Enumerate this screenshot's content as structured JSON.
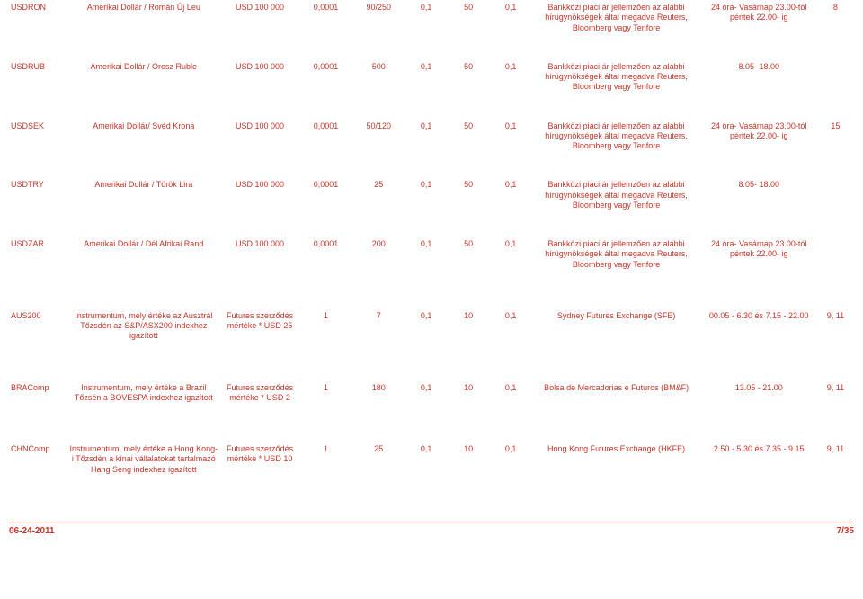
{
  "columns": {
    "widths": [
      "55",
      "145",
      "75",
      "50",
      "50",
      "40",
      "40",
      "40",
      "160",
      "110",
      "35"
    ]
  },
  "rows": [
    {
      "c": [
        "USDRON",
        "Amerikai Dollár / Román Új Leu",
        "USD 100 000",
        "0,0001",
        "90/250",
        "0,1",
        "50",
        "0,1",
        "Bankközi piaci ár jellemzően az alábbi hírügynökségek által megadva Reuters, Bloomberg vagy Tenfore",
        "24 óra- Vasárnap 23.00-tól péntek 22.00- ig",
        "8"
      ]
    },
    {
      "c": [
        "USDRUB",
        "Amerikai Dollár / Orosz Ruble",
        "USD 100 000",
        "0,0001",
        "500",
        "0,1",
        "50",
        "0,1",
        "Bankközi piaci ár jellemzően az alábbi hírügynökségek által megadva Reuters, Bloomberg vagy Tenfore",
        "8.05- 18.00",
        ""
      ]
    },
    {
      "c": [
        "USDSEK",
        "Amerikai Dollár/ Svéd Krona",
        "USD 100 000",
        "0,0001",
        "50/120",
        "0,1",
        "50",
        "0,1",
        "Bankközi piaci ár jellemzően az alábbi hírügynökségek által megadva Reuters, Bloomberg vagy Tenfore",
        "24 óra- Vasárnap 23.00-tól péntek 22.00- ig",
        "15"
      ]
    },
    {
      "c": [
        "USDTRY",
        "Amerikai Dollár / Török Lira",
        "USD 100 000",
        "0,0001",
        "25",
        "0,1",
        "50",
        "0,1",
        "Bankközi piaci ár jellemzően az alábbi hírügynökségek által megadva Reuters, Bloomberg vagy Tenfore",
        "8.05- 18.00",
        ""
      ]
    },
    {
      "c": [
        "USDZAR",
        "Amerikai Dollár / Dél Afrikai Rand",
        "USD 100 000",
        "0,0001",
        "200",
        "0,1",
        "50",
        "0,1",
        "Bankközi piaci ár jellemzően az alábbi hírügynökségek által megadva Reuters, Bloomberg vagy Tenfore",
        "24 óra- Vasárnap 23.00-tól péntek 22.00- ig",
        ""
      ]
    },
    {
      "c": [
        "AUS200",
        "Instrumentum, mely értéke az Ausztrál Tőzsdén az S&P/ASX200 indexhez igazított",
        "Futures szerződés mértéke * USD 25",
        "1",
        "7",
        "0,1",
        "10",
        "0,1",
        "Sydney Futures Exchange (SFE)",
        "00.05 - 6.30 és 7.15 - 22.00",
        "9, 11"
      ]
    },
    {
      "c": [
        "BRAComp",
        "Instrumentum, mely értéke a Brazil Tőzsén a BOVESPA indexhez igazított",
        "Futures szerződés mértéke * USD 2",
        "1",
        "180",
        "0,1",
        "10",
        "0,1",
        "Bolsa de Mercadorias e Futuros (BM&F)",
        "13.05 - 21.00",
        "9, 11"
      ]
    },
    {
      "c": [
        "CHNComp",
        "Instrumentum, mely értéke a Hong Kong-i Tőzsdén a kínai vállalatokat tartalmazó Hang Seng indexhez igazított",
        "Futures szerződés mértéke * USD 10",
        "1",
        "25",
        "0,1",
        "10",
        "0,1",
        "Hong Kong Futures Exchange (HKFE)",
        "2.50 - 5.30 és 7.35 - 9.15",
        "9, 11"
      ]
    }
  ],
  "footer": {
    "date": "06-24-2011",
    "page": "7/35"
  }
}
